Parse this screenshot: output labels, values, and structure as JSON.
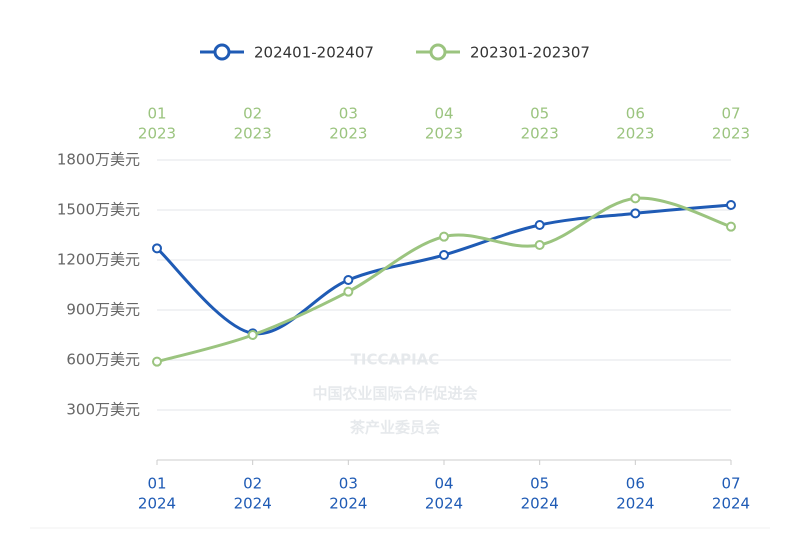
{
  "chart_data": {
    "type": "line",
    "categories": [
      "01",
      "02",
      "03",
      "04",
      "05",
      "06",
      "07"
    ],
    "category_years": [
      "2024",
      "2024",
      "2024",
      "2024",
      "2024",
      "2024",
      "2024"
    ],
    "x2_categories": [
      "01",
      "02",
      "03",
      "04",
      "05",
      "06",
      "07"
    ],
    "x2_category_years": [
      "2023",
      "2023",
      "2023",
      "2023",
      "2023",
      "2023",
      "2023"
    ],
    "series": [
      {
        "name": "202401-202407",
        "color": "#1f5bb5",
        "values": [
          1270,
          760,
          1080,
          1230,
          1410,
          1480,
          1530
        ]
      },
      {
        "name": "202301-202307",
        "color": "#9bc47f",
        "axis": "x2",
        "values": [
          590,
          750,
          1010,
          1340,
          1290,
          1570,
          1400
        ]
      }
    ],
    "ylim": [
      0,
      1800
    ],
    "yticks": [
      {
        "value": 300,
        "label": "300万美元"
      },
      {
        "value": 600,
        "label": "600万美元"
      },
      {
        "value": 900,
        "label": "900万美元"
      },
      {
        "value": 1200,
        "label": "1200万美元"
      },
      {
        "value": 1500,
        "label": "1500万美元"
      },
      {
        "value": 1800,
        "label": "1800万美元"
      }
    ],
    "grid": true,
    "smooth": true,
    "legend": "top",
    "watermark": [
      "TICCAPIAC",
      "中国农业国际合作促进会",
      "茶产业委员会"
    ]
  }
}
